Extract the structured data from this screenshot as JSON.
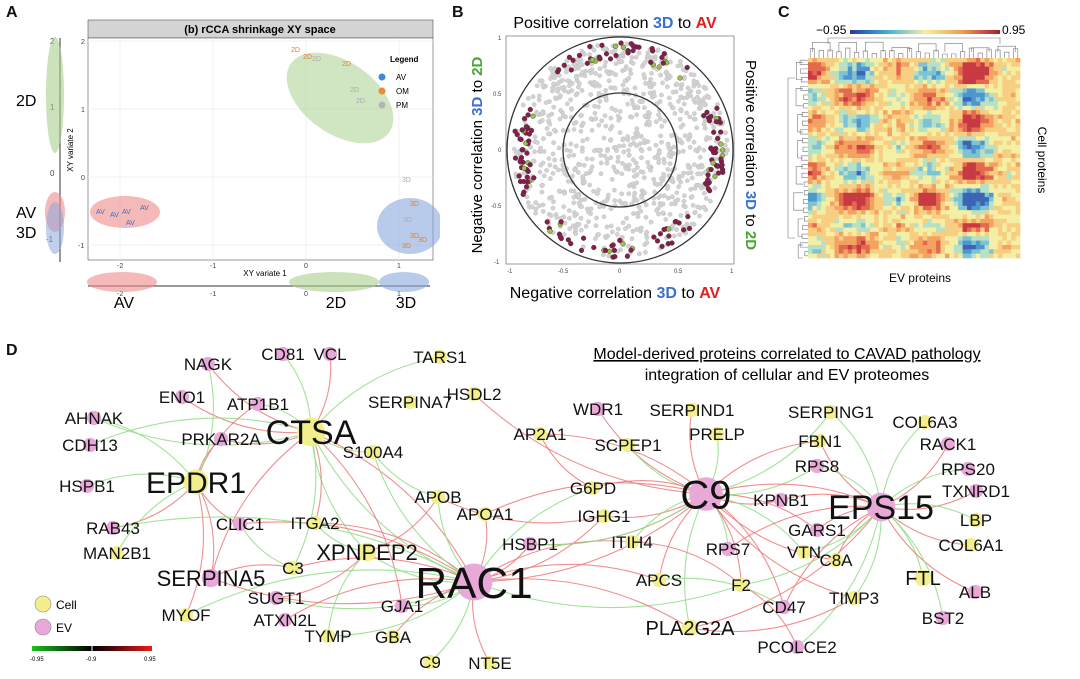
{
  "panels": {
    "a": "A",
    "b": "B",
    "c": "C",
    "d": "D"
  },
  "panel_a": {
    "title": "(b) rCCA shrinkage XY space",
    "xlabel": "XY variate 1",
    "ylabel": "XY variate 2",
    "legend_title": "Legend",
    "legend": [
      {
        "name": "AV",
        "color": "#3b8bd9"
      },
      {
        "name": "OM",
        "color": "#f08a2e"
      },
      {
        "name": "PM",
        "color": "#b5b5b5"
      }
    ],
    "x_ticks": [
      "-2",
      "-1",
      "0",
      "1"
    ],
    "y_ticks": [
      "2",
      "1",
      "0",
      "-1"
    ],
    "margin_left_ticks": [
      "2",
      "1",
      "0",
      "-1"
    ],
    "margin_bottom_ticks": [
      "-2",
      "-1",
      "0",
      "1"
    ],
    "group_labels": {
      "av": "AV",
      "d2": "2D",
      "d3": "3D"
    },
    "points": {
      "d2": [
        "2D",
        "2D",
        "2D",
        "2D",
        "2D",
        "2D"
      ],
      "av": [
        "AV",
        "AV",
        "AV",
        "AV",
        "AV"
      ],
      "d3": [
        "3D",
        "3D",
        "3D",
        "3D",
        "3D",
        "3D"
      ]
    }
  },
  "panel_b": {
    "top_label": {
      "pre": "Positive correlation ",
      "a": "3D",
      "mid": " to ",
      "b": "AV"
    },
    "bottom_label": {
      "pre": "Negative correlation ",
      "a": "3D",
      "mid": " to ",
      "b": "AV"
    },
    "left_label": {
      "pre": "Negative correlation ",
      "a": "3D",
      "mid": " to ",
      "b": "2D"
    },
    "right_label": {
      "pre": "Positive correlation ",
      "a": "3D",
      "mid": " to ",
      "b": "2D"
    },
    "x_ticks": [
      "-1",
      "-0.5",
      "0",
      "0.5",
      "1"
    ],
    "y_ticks": [
      "1",
      "0.5",
      "0",
      "-0.5",
      "-1"
    ]
  },
  "panel_c": {
    "scale_min": "−0.95",
    "scale_max": "0.95",
    "xlabel": "EV proteins",
    "ylabel": "Cell proteins"
  },
  "panel_d": {
    "title": "Model-derived proteins correlated to CAVAD pathology",
    "subtitle": "integration of cellular and EV proteomes",
    "legend": {
      "cell": "Cell",
      "ev": "EV"
    },
    "colorbar_ticks": [
      "-0.95",
      "-0.9",
      "0.95"
    ],
    "colors": {
      "cell": "#f2ef8c",
      "ev": "#e8a8d8",
      "pos": "#e8585b",
      "neg": "#6fd36a"
    },
    "nodes": [
      {
        "id": "NAGK",
        "label": "NAGK",
        "type": "ev",
        "size": 17
      },
      {
        "id": "CD81",
        "label": "CD81",
        "type": "ev",
        "size": 17
      },
      {
        "id": "VCL",
        "label": "VCL",
        "type": "ev",
        "size": 17
      },
      {
        "id": "TARS1",
        "label": "TARS1",
        "type": "cell",
        "size": 17
      },
      {
        "id": "HSDL2",
        "label": "HSDL2",
        "type": "cell",
        "size": 17
      },
      {
        "id": "SERPINA7",
        "label": "SERPINA7",
        "type": "cell",
        "size": 17
      },
      {
        "id": "ENO1",
        "label": "ENO1",
        "type": "ev",
        "size": 17
      },
      {
        "id": "ATP1B1",
        "label": "ATP1B1",
        "type": "ev",
        "size": 17
      },
      {
        "id": "AHNAK",
        "label": "AHNAK",
        "type": "ev",
        "size": 17
      },
      {
        "id": "CDH13",
        "label": "CDH13",
        "type": "ev",
        "size": 17
      },
      {
        "id": "PRKAR2A",
        "label": "PRKAR2A",
        "type": "ev",
        "size": 17
      },
      {
        "id": "CTSA",
        "label": "CTSA",
        "type": "cell",
        "size": 34
      },
      {
        "id": "S100A4",
        "label": "S100A4",
        "type": "cell",
        "size": 17
      },
      {
        "id": "HSPB1",
        "label": "HSPB1",
        "type": "ev",
        "size": 17
      },
      {
        "id": "EPDR1",
        "label": "EPDR1",
        "type": "cell",
        "size": 30
      },
      {
        "id": "RAB43",
        "label": "RAB43",
        "type": "ev",
        "size": 17
      },
      {
        "id": "CLIC1",
        "label": "CLIC1",
        "type": "ev",
        "size": 17
      },
      {
        "id": "ITGA2",
        "label": "ITGA2",
        "type": "cell",
        "size": 17
      },
      {
        "id": "MAN2B1",
        "label": "MAN2B1",
        "type": "cell",
        "size": 17
      },
      {
        "id": "XPNPEP2",
        "label": "XPNPEP2",
        "type": "cell",
        "size": 22
      },
      {
        "id": "SERPINA5",
        "label": "SERPINA5",
        "type": "ev",
        "size": 22
      },
      {
        "id": "C3",
        "label": "C3",
        "type": "cell",
        "size": 17
      },
      {
        "id": "SUGT1",
        "label": "SUGT1",
        "type": "ev",
        "size": 17
      },
      {
        "id": "MYOF",
        "label": "MYOF",
        "type": "cell",
        "size": 17
      },
      {
        "id": "ATXN2L",
        "label": "ATXN2L",
        "type": "ev",
        "size": 17
      },
      {
        "id": "GJA1",
        "label": "GJA1",
        "type": "ev",
        "size": 17
      },
      {
        "id": "TYMP",
        "label": "TYMP",
        "type": "cell",
        "size": 17
      },
      {
        "id": "GBA",
        "label": "GBA",
        "type": "cell",
        "size": 17
      },
      {
        "id": "C9b",
        "label": "C9",
        "type": "cell",
        "size": 17
      },
      {
        "id": "NT5E",
        "label": "NT5E",
        "type": "cell",
        "size": 17
      },
      {
        "id": "RAC1",
        "label": "RAC1",
        "type": "ev",
        "size": 44
      },
      {
        "id": "APOB",
        "label": "APOB",
        "type": "cell",
        "size": 17
      },
      {
        "id": "APOA1",
        "label": "APOA1",
        "type": "cell",
        "size": 17
      },
      {
        "id": "AP2A1",
        "label": "AP2A1",
        "type": "cell",
        "size": 17
      },
      {
        "id": "WDR1",
        "label": "WDR1",
        "type": "ev",
        "size": 17
      },
      {
        "id": "SCPEP1",
        "label": "SCPEP1",
        "type": "cell",
        "size": 17
      },
      {
        "id": "G6PD",
        "label": "G6PD",
        "type": "cell",
        "size": 17
      },
      {
        "id": "IGHG1",
        "label": "IGHG1",
        "type": "cell",
        "size": 17
      },
      {
        "id": "HSBP1",
        "label": "HSBP1",
        "type": "ev",
        "size": 17
      },
      {
        "id": "ITIH4",
        "label": "ITIH4",
        "type": "cell",
        "size": 17
      },
      {
        "id": "SERPIND1",
        "label": "SERPIND1",
        "type": "cell",
        "size": 17
      },
      {
        "id": "PRELP",
        "label": "PRELP",
        "type": "cell",
        "size": 17
      },
      {
        "id": "C9",
        "label": "C9",
        "type": "ev",
        "size": 40
      },
      {
        "id": "KPNB1",
        "label": "KPNB1",
        "type": "ev",
        "size": 17
      },
      {
        "id": "RPS7",
        "label": "RPS7",
        "type": "ev",
        "size": 17
      },
      {
        "id": "APCS",
        "label": "APCS",
        "type": "cell",
        "size": 17
      },
      {
        "id": "F2",
        "label": "F2",
        "type": "cell",
        "size": 17
      },
      {
        "id": "PLA2G2A",
        "label": "PLA2G2A",
        "type": "cell",
        "size": 20
      },
      {
        "id": "CD47",
        "label": "CD47",
        "type": "ev",
        "size": 17
      },
      {
        "id": "PCOLCE2",
        "label": "PCOLCE2",
        "type": "ev",
        "size": 17
      },
      {
        "id": "TIMP3",
        "label": "TIMP3",
        "type": "cell",
        "size": 17
      },
      {
        "id": "VTN",
        "label": "VTN",
        "type": "cell",
        "size": 17
      },
      {
        "id": "C8A",
        "label": "C8A",
        "type": "cell",
        "size": 17
      },
      {
        "id": "GARS1",
        "label": "GARS1",
        "type": "ev",
        "size": 17
      },
      {
        "id": "SERPING1",
        "label": "SERPING1",
        "type": "cell",
        "size": 17
      },
      {
        "id": "FBN1",
        "label": "FBN1",
        "type": "cell",
        "size": 17
      },
      {
        "id": "RPS8",
        "label": "RPS8",
        "type": "ev",
        "size": 17
      },
      {
        "id": "EPS15",
        "label": "EPS15",
        "type": "ev",
        "size": 34
      },
      {
        "id": "COL6A3",
        "label": "COL6A3",
        "type": "cell",
        "size": 17
      },
      {
        "id": "RACK1",
        "label": "RACK1",
        "type": "ev",
        "size": 17
      },
      {
        "id": "RPS20",
        "label": "RPS20",
        "type": "ev",
        "size": 17
      },
      {
        "id": "TXNRD1",
        "label": "TXNRD1",
        "type": "ev",
        "size": 17
      },
      {
        "id": "LBP",
        "label": "LBP",
        "type": "cell",
        "size": 17
      },
      {
        "id": "COL6A1",
        "label": "COL6A1",
        "type": "cell",
        "size": 17
      },
      {
        "id": "FTL",
        "label": "FTL",
        "type": "cell",
        "size": 20
      },
      {
        "id": "ALB",
        "label": "ALB",
        "type": "ev",
        "size": 17
      },
      {
        "id": "BST2",
        "label": "BST2",
        "type": "ev",
        "size": 17
      }
    ]
  }
}
